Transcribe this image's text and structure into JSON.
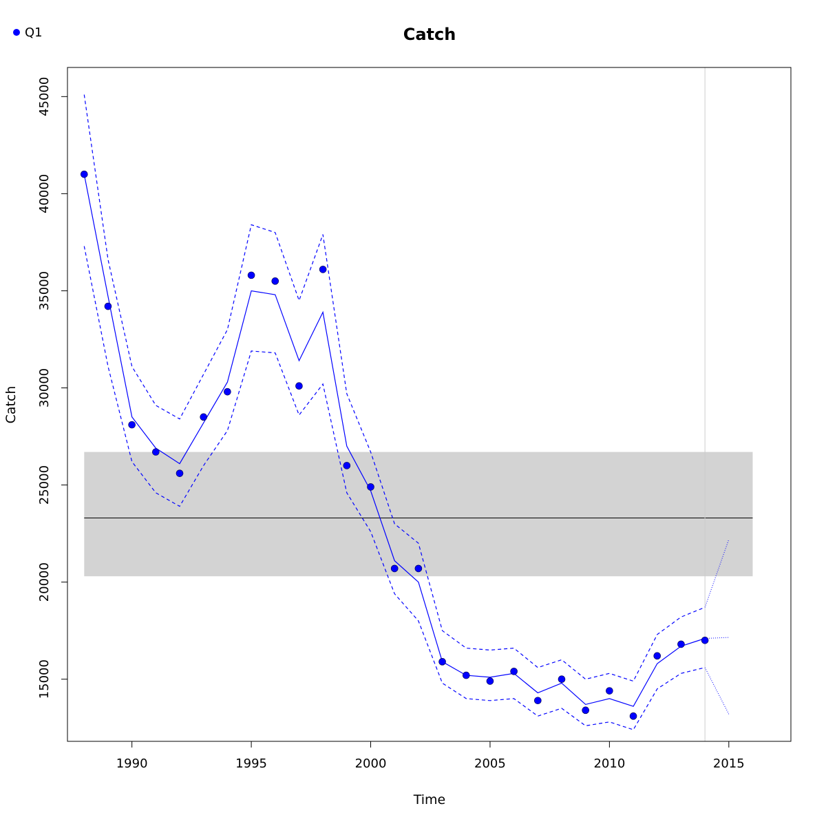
{
  "chart_data": {
    "type": "line",
    "title": "Catch",
    "xlabel": "Time",
    "ylabel": "Catch",
    "xlim": [
      1987.3,
      2017.6
    ],
    "ylim": [
      11800,
      46500
    ],
    "x_ticks": [
      1990,
      1995,
      2000,
      2005,
      2010,
      2015
    ],
    "y_ticks": [
      15000,
      20000,
      25000,
      30000,
      35000,
      40000,
      45000
    ],
    "x_tick_labels": [
      "1990",
      "1995",
      "2000",
      "2005",
      "2010",
      "2015"
    ],
    "y_tick_labels": [
      "15000",
      "20000",
      "25000",
      "30000",
      "35000",
      "40000",
      "45000"
    ],
    "grid": false,
    "legend": {
      "position": "top-left",
      "entries": [
        {
          "label": "Q1",
          "color": "#0000ff",
          "marker": "filled-circle"
        }
      ]
    },
    "reference_band": {
      "x_range": [
        1988,
        2016
      ],
      "lower": 20300,
      "upper": 26700,
      "mean": 23300,
      "fill_color": "#d3d3d3",
      "line_color": "#000000"
    },
    "vertical_line_x": 2014,
    "series": [
      {
        "name": "Q1",
        "kind": "observed",
        "color": "#0000ff",
        "x": [
          1988,
          1989,
          1990,
          1991,
          1992,
          1993,
          1994,
          1995,
          1996,
          1997,
          1998,
          1999,
          2000,
          2001,
          2002,
          2003,
          2004,
          2005,
          2006,
          2007,
          2008,
          2009,
          2010,
          2011,
          2012,
          2013,
          2014
        ],
        "values": [
          41000,
          34200,
          28100,
          26700,
          25600,
          28500,
          29800,
          35800,
          35500,
          30100,
          36100,
          26000,
          24900,
          20700,
          20700,
          15900,
          15200,
          14900,
          15400,
          13900,
          15000,
          13400,
          14400,
          13100,
          16200,
          16800,
          17000
        ]
      },
      {
        "kind": "fitted",
        "color": "#0000ff",
        "x": [
          1988,
          1989,
          1990,
          1991,
          1992,
          1993,
          1994,
          1995,
          1996,
          1997,
          1998,
          1999,
          2000,
          2001,
          2002,
          2003,
          2004,
          2005,
          2006,
          2007,
          2008,
          2009,
          2010,
          2011,
          2012,
          2013,
          2014
        ],
        "values": [
          41000,
          34700,
          28500,
          26900,
          26100,
          28200,
          30300,
          35000,
          34800,
          31400,
          33900,
          27000,
          24700,
          21100,
          20000,
          15900,
          15200,
          15100,
          15300,
          14300,
          14800,
          13700,
          14000,
          13600,
          15800,
          16700,
          17100
        ]
      },
      {
        "kind": "upper-ci",
        "color": "#0000ff",
        "x": [
          1988,
          1989,
          1990,
          1991,
          1992,
          1993,
          1994,
          1995,
          1996,
          1997,
          1998,
          1999,
          2000,
          2001,
          2002,
          2003,
          2004,
          2005,
          2006,
          2007,
          2008,
          2009,
          2010,
          2011,
          2012,
          2013,
          2014
        ],
        "values": [
          45100,
          36600,
          31100,
          29100,
          28400,
          30700,
          33000,
          38400,
          38000,
          34500,
          37900,
          29700,
          26700,
          23000,
          22000,
          17500,
          16600,
          16500,
          16600,
          15600,
          16000,
          15000,
          15300,
          14900,
          17300,
          18200,
          18700
        ]
      },
      {
        "kind": "lower-ci",
        "color": "#0000ff",
        "x": [
          1988,
          1989,
          1990,
          1991,
          1992,
          1993,
          1994,
          1995,
          1996,
          1997,
          1998,
          1999,
          2000,
          2001,
          2002,
          2003,
          2004,
          2005,
          2006,
          2007,
          2008,
          2009,
          2010,
          2011,
          2012,
          2013,
          2014
        ],
        "values": [
          37300,
          31100,
          26200,
          24600,
          23900,
          26000,
          27800,
          31900,
          31800,
          28600,
          30200,
          24600,
          22600,
          19400,
          18000,
          14800,
          14000,
          13900,
          14000,
          13100,
          13500,
          12600,
          12800,
          12400,
          14500,
          15300,
          15600
        ]
      },
      {
        "kind": "forecast",
        "color": "#0000ff",
        "x": [
          2014,
          2015
        ],
        "values": [
          17100,
          17150
        ]
      },
      {
        "kind": "forecast-upper",
        "color": "#0000ff",
        "x": [
          2014,
          2015
        ],
        "values": [
          18700,
          22200
        ]
      },
      {
        "kind": "forecast-lower",
        "color": "#0000ff",
        "x": [
          2014,
          2015
        ],
        "values": [
          15600,
          13200
        ]
      }
    ]
  }
}
